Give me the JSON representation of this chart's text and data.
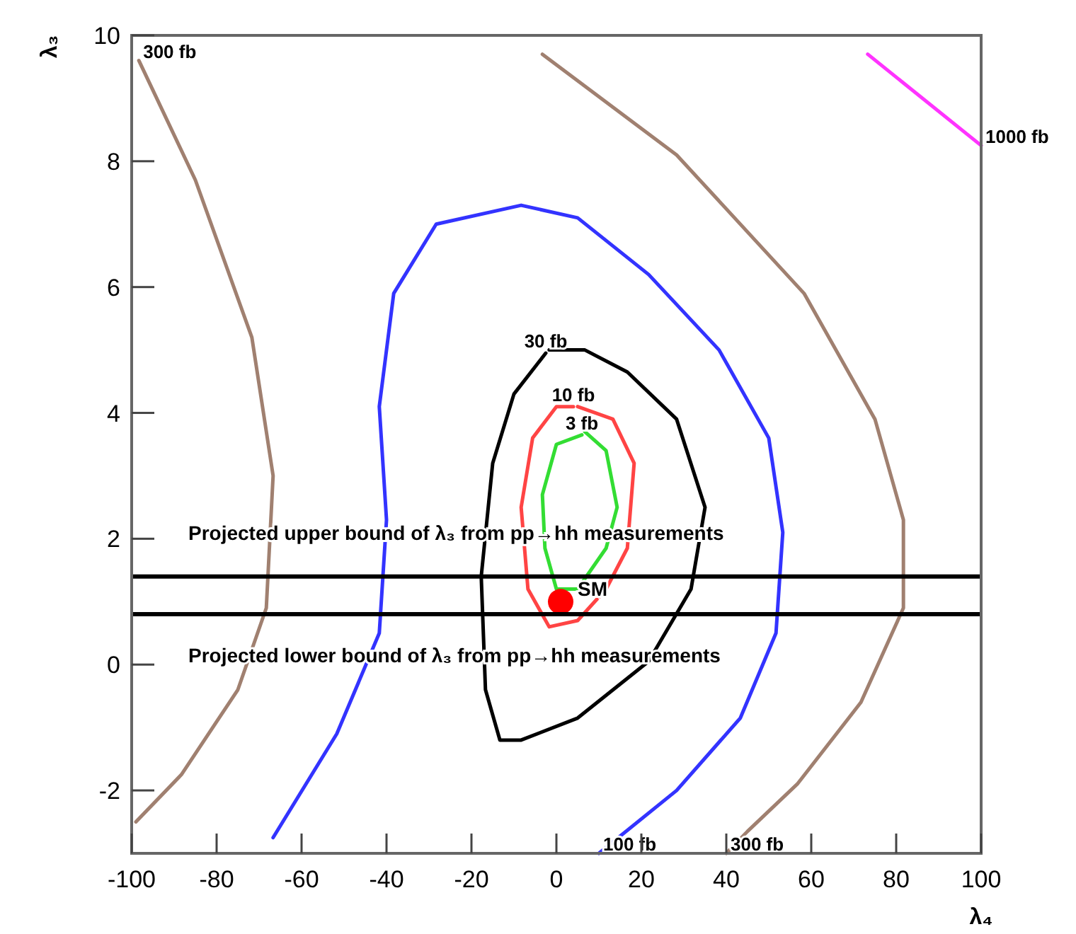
{
  "chart_data": {
    "type": "line",
    "xlabel": "λ₄",
    "ylabel": "λ₃",
    "xlim": [
      -100,
      100
    ],
    "ylim": [
      -3,
      10
    ],
    "xticks": [
      -100,
      -80,
      -60,
      -40,
      -20,
      0,
      20,
      40,
      60,
      80,
      100
    ],
    "yticks": [
      -2,
      0,
      2,
      4,
      6,
      8,
      10
    ],
    "line_style": "solid",
    "series": [
      {
        "name": "300 fb",
        "color": "#a08070",
        "x": [
          -99,
          -88.3,
          -75,
          -68.3,
          -66.7,
          -71.7,
          -85,
          -98.3
        ],
        "values": [
          -2.5,
          -1.75,
          -0.4,
          0.9,
          3.0,
          5.2,
          7.7,
          9.6
        ]
      },
      {
        "name": "300 fb",
        "color": "#a08070",
        "x": [
          -3.3,
          28.3,
          58.3,
          75,
          81.7,
          81.7,
          71.7,
          56.7,
          45,
          40
        ],
        "values": [
          9.7,
          8.1,
          5.9,
          3.9,
          2.3,
          0.9,
          -0.6,
          -1.9,
          -2.65,
          -3
        ]
      },
      {
        "name": "100 fb",
        "color": "#3333ff",
        "x": [
          -66.7,
          -51.7,
          -41.7,
          -40,
          -41.7,
          -38.3,
          -28.3,
          -8.3,
          5,
          21.7,
          38.3,
          50,
          53.3,
          51.7,
          43.3,
          28.3,
          10
        ],
        "values": [
          -2.75,
          -1.1,
          0.5,
          2.3,
          4.1,
          5.9,
          7.0,
          7.3,
          7.1,
          6.2,
          5.0,
          3.6,
          2.1,
          0.5,
          -0.85,
          -2,
          -3
        ]
      },
      {
        "name": "30 fb",
        "color": "#000000",
        "x": [
          -1.7,
          6.7,
          16.7,
          28.3,
          35,
          31.7,
          21.7,
          5,
          -8.3,
          -13.3,
          -16.7,
          -17.7,
          -15,
          -10,
          -2.5
        ],
        "values": [
          5.0,
          5.0,
          4.65,
          3.9,
          2.5,
          1.2,
          0.05,
          -0.85,
          -1.2,
          -1.2,
          -0.4,
          1.4,
          3.2,
          4.3,
          4.95
        ]
      },
      {
        "name": "10 fb",
        "color": "#ff4444",
        "x": [
          5,
          13.3,
          18.3,
          16.7,
          11.7,
          5,
          -1.7,
          -6.7,
          -8.3,
          -5.6,
          0,
          4
        ],
        "values": [
          4.1,
          3.9,
          3.2,
          1.85,
          1.2,
          0.7,
          0.6,
          1.2,
          2.5,
          3.6,
          4.1,
          4.1
        ]
      },
      {
        "name": "3 fb",
        "color": "#33dd33",
        "x": [
          6.7,
          11.7,
          14.3,
          11.7,
          5,
          0,
          -2.7,
          -3.3,
          0,
          6
        ],
        "values": [
          3.7,
          3.4,
          2.5,
          1.85,
          1.2,
          1.2,
          1.85,
          2.7,
          3.5,
          3.65
        ]
      },
      {
        "name": "1000 fb",
        "color": "#ff33ff",
        "x": [
          73.3,
          100
        ],
        "values": [
          9.7,
          8.25
        ]
      },
      {
        "type": "scatter",
        "name": "SM",
        "color": "#ff0000",
        "marker": "circle",
        "x": [
          1
        ],
        "values": [
          1.0
        ]
      }
    ],
    "ref_lines": [
      {
        "axis": "y",
        "value": 1.4,
        "label": "Projected upper bound of λ₃ from pp→hh measurements",
        "color": "#000000"
      },
      {
        "axis": "y",
        "value": 0.8,
        "label": "Projected lower bound of λ₃ from pp→hh measurements",
        "color": "#000000"
      }
    ]
  }
}
